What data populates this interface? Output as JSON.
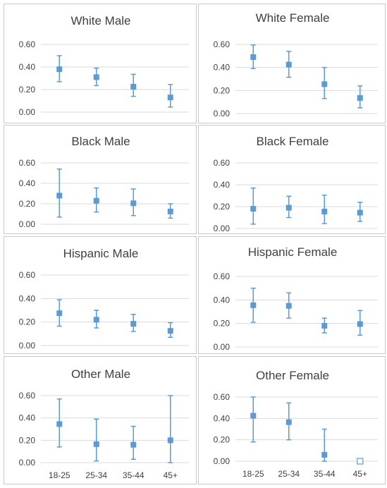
{
  "accent_color": "#5b9bd5",
  "chart_data": [
    {
      "type": "scatter",
      "title": "White Male",
      "categories": [
        "18-25",
        "25-34",
        "35-44",
        "45+"
      ],
      "yticks": [
        "0.00",
        "0.20",
        "0.40",
        "0.60"
      ],
      "ylim": [
        0,
        0.6
      ],
      "values": [
        0.38,
        0.31,
        0.225,
        0.13
      ],
      "lower": [
        0.27,
        0.235,
        0.14,
        0.045
      ],
      "upper": [
        0.5,
        0.39,
        0.335,
        0.245
      ],
      "markers": [
        "filled",
        "filled",
        "filled",
        "filled"
      ]
    },
    {
      "type": "scatter",
      "title": "White Female",
      "categories": [
        "18-25",
        "25-34",
        "35-44",
        "45+"
      ],
      "yticks": [
        "0.00",
        "0.20",
        "0.40",
        "0.60"
      ],
      "ylim": [
        0,
        0.6
      ],
      "values": [
        0.49,
        0.425,
        0.255,
        0.135
      ],
      "lower": [
        0.39,
        0.315,
        0.13,
        0.05
      ],
      "upper": [
        0.595,
        0.54,
        0.4,
        0.24
      ],
      "markers": [
        "filled",
        "filled",
        "filled",
        "filled"
      ]
    },
    {
      "type": "scatter",
      "title": "Black Male",
      "categories": [
        "18-25",
        "25-34",
        "35-44",
        "45+"
      ],
      "yticks": [
        "0.00",
        "0.20",
        "0.40",
        "0.60"
      ],
      "ylim": [
        0,
        0.6
      ],
      "values": [
        0.28,
        0.23,
        0.205,
        0.125
      ],
      "lower": [
        0.07,
        0.12,
        0.085,
        0.06
      ],
      "upper": [
        0.54,
        0.355,
        0.345,
        0.2
      ],
      "markers": [
        "filled",
        "filled",
        "filled",
        "filled"
      ]
    },
    {
      "type": "scatter",
      "title": "Black Female",
      "categories": [
        "18-25",
        "25-34",
        "35-44",
        "45+"
      ],
      "yticks": [
        "0.00",
        "0.20",
        "0.40",
        "0.60"
      ],
      "ylim": [
        0,
        0.6
      ],
      "values": [
        0.18,
        0.19,
        0.155,
        0.145
      ],
      "lower": [
        0.04,
        0.1,
        0.045,
        0.065
      ],
      "upper": [
        0.37,
        0.295,
        0.305,
        0.24
      ],
      "markers": [
        "filled",
        "filled",
        "filled",
        "filled"
      ]
    },
    {
      "type": "scatter",
      "title": "Hispanic Male",
      "categories": [
        "18-25",
        "25-34",
        "35-44",
        "45+"
      ],
      "yticks": [
        "0.00",
        "0.20",
        "0.40",
        "0.60"
      ],
      "ylim": [
        0,
        0.6
      ],
      "values": [
        0.275,
        0.22,
        0.185,
        0.125
      ],
      "lower": [
        0.165,
        0.15,
        0.12,
        0.07
      ],
      "upper": [
        0.39,
        0.3,
        0.265,
        0.195
      ],
      "markers": [
        "filled",
        "filled",
        "filled",
        "filled"
      ]
    },
    {
      "type": "scatter",
      "title": "Hispanic Female",
      "categories": [
        "18-25",
        "25-34",
        "35-44",
        "45+"
      ],
      "yticks": [
        "0.00",
        "0.20",
        "0.40",
        "0.60"
      ],
      "ylim": [
        0,
        0.6
      ],
      "values": [
        0.355,
        0.35,
        0.18,
        0.195
      ],
      "lower": [
        0.21,
        0.245,
        0.12,
        0.1
      ],
      "upper": [
        0.5,
        0.46,
        0.245,
        0.31
      ],
      "markers": [
        "filled",
        "filled",
        "filled",
        "filled"
      ]
    },
    {
      "type": "scatter",
      "title": "Other Male",
      "categories": [
        "18-25",
        "25-34",
        "35-44",
        "45+"
      ],
      "yticks": [
        "0.00",
        "0.20",
        "0.40",
        "0.60"
      ],
      "ylim": [
        0,
        0.6
      ],
      "values": [
        0.345,
        0.165,
        0.16,
        0.2
      ],
      "lower": [
        0.14,
        0.015,
        0.03,
        0.0
      ],
      "upper": [
        0.57,
        0.39,
        0.325,
        0.6
      ],
      "markers": [
        "filled",
        "filled",
        "filled",
        "filled"
      ]
    },
    {
      "type": "scatter",
      "title": "Other Female",
      "categories": [
        "18-25",
        "25-34",
        "35-44",
        "45+"
      ],
      "yticks": [
        "0.00",
        "0.20",
        "0.40",
        "0.60"
      ],
      "ylim": [
        0,
        0.6
      ],
      "values": [
        0.425,
        0.365,
        0.06,
        0.0
      ],
      "lower": [
        0.18,
        0.2,
        0.0,
        null
      ],
      "upper": [
        0.6,
        0.545,
        0.3,
        null
      ],
      "markers": [
        "filled",
        "filled",
        "filled",
        "hollow"
      ]
    }
  ]
}
